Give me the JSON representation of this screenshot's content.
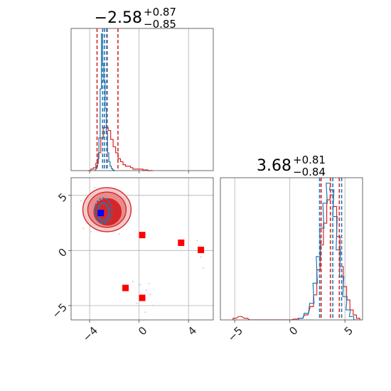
{
  "colors": {
    "red": "#d62728",
    "blue": "#1f77b4",
    "marker_blue": "#0000ff",
    "marker_red": "#ff0000",
    "grid": "#b0b0b0",
    "axes": "#444444"
  },
  "chart_data": [
    {
      "type": "histogram",
      "panel": "top-left marginal",
      "title_main": "−2.58",
      "title_sup": "+0.87",
      "title_sub": "−0.85",
      "xlim": [
        -5.5,
        6.0
      ],
      "xticks": [
        -4,
        0,
        4
      ],
      "xtick_labels": [
        "−4",
        "0",
        "4"
      ],
      "grid": true,
      "quantile_lines": {
        "red": [
          -3.4,
          -2.58,
          -1.71
        ],
        "blue": [
          -2.95,
          -2.8,
          -2.62
        ]
      },
      "series": [
        {
          "color": "red",
          "x": [
            -4.0,
            -3.8,
            -3.6,
            -3.4,
            -3.2,
            -3.0,
            -2.8,
            -2.6,
            -2.4,
            -2.2,
            -2.0,
            -1.8,
            -1.6,
            -1.4,
            -1.2,
            -1.0,
            -0.8,
            -0.6,
            -0.4,
            -0.2,
            0.0,
            0.2,
            0.4,
            0.6,
            0.8,
            1.0
          ],
          "values": [
            0.0,
            0.01,
            0.02,
            0.05,
            0.12,
            0.22,
            0.29,
            0.29,
            0.27,
            0.21,
            0.16,
            0.12,
            0.08,
            0.06,
            0.04,
            0.03,
            0.03,
            0.02,
            0.01,
            0.01,
            0.01,
            0.01,
            0.005,
            0.005,
            0.0,
            0.0
          ]
        },
        {
          "color": "blue",
          "x": [
            -3.5,
            -3.4,
            -3.3,
            -3.2,
            -3.1,
            -3.0,
            -2.9,
            -2.8,
            -2.7,
            -2.6,
            -2.5,
            -2.4,
            -2.3,
            -2.2,
            -2.1,
            -2.0
          ],
          "values": [
            0.01,
            0.03,
            0.08,
            0.22,
            0.55,
            0.92,
            0.72,
            0.6,
            0.42,
            0.25,
            0.12,
            0.06,
            0.03,
            0.015,
            0.005,
            0.0
          ]
        }
      ]
    },
    {
      "type": "histogram",
      "panel": "bottom-right marginal",
      "title_main": "3.68",
      "title_sup": "+0.81",
      "title_sub": "−0.84",
      "xlim": [
        -6.3,
        6.6
      ],
      "xticks": [
        -5,
        0,
        5
      ],
      "xtick_labels": [
        "−5",
        "0",
        "5"
      ],
      "grid": true,
      "quantile_lines": {
        "red": [
          2.84,
          3.68,
          4.49
        ],
        "blue": [
          2.7,
          3.9,
          4.7
        ]
      },
      "series": [
        {
          "color": "red",
          "x": [
            -5.0,
            -4.5,
            -4.0,
            -3.5,
            0.0,
            0.5,
            1.0,
            1.5,
            2.0,
            2.3,
            2.6,
            2.9,
            3.2,
            3.5,
            3.8,
            4.1,
            4.4,
            4.7,
            5.0,
            5.3,
            5.6,
            5.9,
            6.2
          ],
          "values": [
            0.01,
            0.02,
            0.01,
            0.0,
            0.0,
            0.005,
            0.01,
            0.03,
            0.08,
            0.15,
            0.3,
            0.45,
            0.58,
            0.72,
            0.75,
            0.68,
            0.5,
            0.32,
            0.2,
            0.12,
            0.06,
            0.03,
            0.01
          ]
        },
        {
          "color": "blue",
          "x": [
            1.0,
            1.5,
            2.0,
            2.3,
            2.6,
            2.9,
            3.2,
            3.5,
            3.8,
            4.1,
            4.4,
            4.7,
            5.0,
            5.3,
            5.6,
            6.0
          ],
          "values": [
            0.01,
            0.04,
            0.1,
            0.22,
            0.38,
            0.55,
            0.7,
            0.82,
            0.78,
            0.62,
            0.42,
            0.26,
            0.14,
            0.06,
            0.02,
            0.0
          ]
        }
      ]
    },
    {
      "type": "scatter",
      "panel": "bottom-left joint",
      "xlim": [
        -5.5,
        6.0
      ],
      "ylim": [
        -6.3,
        6.6
      ],
      "xticks": [
        -4,
        0,
        4
      ],
      "xtick_labels": [
        "−4",
        "0",
        "4"
      ],
      "yticks": [
        -5,
        0,
        5
      ],
      "ytick_labels": [
        "−5",
        "0",
        "5"
      ],
      "grid": true,
      "red_contours": [
        {
          "cx": -2.6,
          "cy": 3.7,
          "rx": 1.95,
          "ry": 2.0,
          "level": 1
        },
        {
          "cx": -2.6,
          "cy": 3.7,
          "rx": 1.55,
          "ry": 1.6,
          "level": 2
        },
        {
          "cx": -2.55,
          "cy": 3.5,
          "rx": 1.1,
          "ry": 1.2,
          "level": 3
        }
      ],
      "blue_contours": [
        {
          "cx": -2.9,
          "cy": 3.6,
          "rx": 0.7,
          "ry": 1.15
        },
        {
          "cx": -2.9,
          "cy": 3.5,
          "rx": 0.45,
          "ry": 0.8
        }
      ],
      "red_markers": [
        {
          "x": 0.25,
          "y": 1.4
        },
        {
          "x": 3.4,
          "y": 0.7
        },
        {
          "x": 5.0,
          "y": 0.05
        },
        {
          "x": -1.1,
          "y": -3.4
        },
        {
          "x": 0.25,
          "y": -4.3
        }
      ],
      "blue_markers": [
        {
          "x": -3.1,
          "y": 3.4
        }
      ],
      "faint_points": [
        {
          "x": -4.5,
          "y": 2.0
        },
        {
          "x": -3.9,
          "y": 1.7
        },
        {
          "x": -1.3,
          "y": 2.3
        },
        {
          "x": -1.0,
          "y": 4.1
        },
        {
          "x": -0.9,
          "y": 3.4
        },
        {
          "x": -1.6,
          "y": 1.5
        },
        {
          "x": -4.7,
          "y": 4.5
        },
        {
          "x": -3.6,
          "y": 5.7
        },
        {
          "x": -2.0,
          "y": 5.5
        },
        {
          "x": 0.1,
          "y": -3.1
        },
        {
          "x": 0.6,
          "y": -3.6
        },
        {
          "x": 0.9,
          "y": -4.0
        },
        {
          "x": -0.2,
          "y": -4.8
        },
        {
          "x": 0.5,
          "y": -5.6
        },
        {
          "x": 1.1,
          "y": -5.0
        },
        {
          "x": 0.8,
          "y": -3.0
        },
        {
          "x": 5.2,
          "y": -1.6
        },
        {
          "x": 5.0,
          "y": -0.6
        },
        {
          "x": 4.7,
          "y": 0.9
        },
        {
          "x": -0.5,
          "y": -2.8
        }
      ]
    }
  ]
}
